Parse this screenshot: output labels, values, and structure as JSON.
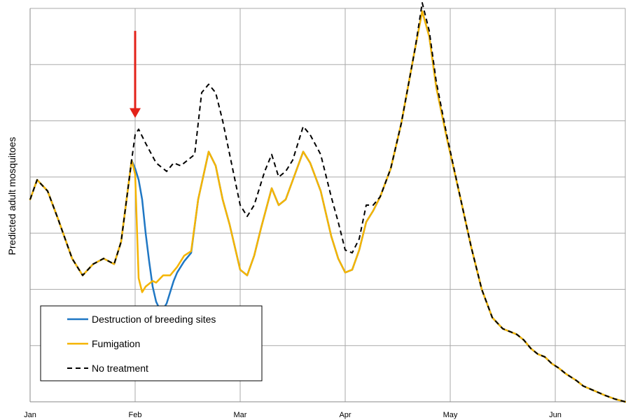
{
  "chart_data": {
    "type": "line",
    "title": "",
    "xlabel": "",
    "ylabel": "Predicted adult mosquitoes",
    "xlim": [
      0,
      170
    ],
    "ylim": [
      0,
      7
    ],
    "grid": true,
    "legend_position": "bottom-left",
    "x_ticks": [
      {
        "label": "Jan",
        "x": 0
      },
      {
        "label": "Feb",
        "x": 30
      },
      {
        "label": "Mar",
        "x": 60
      },
      {
        "label": "Apr",
        "x": 90
      },
      {
        "label": "May",
        "x": 120
      },
      {
        "label": "Jun",
        "x": 150
      }
    ],
    "y_ticks": [
      1,
      2,
      3,
      4,
      5,
      6,
      7
    ],
    "annotation": {
      "type": "arrow",
      "color": "#e32219",
      "x": 30,
      "y_from": 6.6,
      "y_to": 5.05
    },
    "series": [
      {
        "name": "Destruction of breeding sites",
        "color": "#1f77c4",
        "style": "solid",
        "points": [
          [
            0,
            3.6
          ],
          [
            2,
            3.95
          ],
          [
            5,
            3.75
          ],
          [
            8,
            3.25
          ],
          [
            12,
            2.55
          ],
          [
            15,
            2.25
          ],
          [
            18,
            2.45
          ],
          [
            21,
            2.55
          ],
          [
            24,
            2.45
          ],
          [
            26,
            2.85
          ],
          [
            29,
            4.3
          ],
          [
            30,
            4.15
          ],
          [
            31,
            3.95
          ],
          [
            32,
            3.6
          ],
          [
            33,
            3.0
          ],
          [
            34,
            2.5
          ],
          [
            35,
            2.05
          ],
          [
            36,
            1.78
          ],
          [
            37,
            1.65
          ],
          [
            38,
            1.65
          ],
          [
            39,
            1.75
          ],
          [
            40,
            1.95
          ],
          [
            41,
            2.15
          ],
          [
            42,
            2.3
          ],
          [
            44,
            2.5
          ],
          [
            46,
            2.65
          ],
          [
            48,
            3.6
          ],
          [
            51,
            4.45
          ],
          [
            53,
            4.2
          ],
          [
            55,
            3.6
          ],
          [
            57,
            3.15
          ],
          [
            60,
            2.35
          ],
          [
            62,
            2.25
          ],
          [
            64,
            2.6
          ],
          [
            66,
            3.1
          ],
          [
            69,
            3.8
          ],
          [
            71,
            3.5
          ],
          [
            73,
            3.6
          ],
          [
            78,
            4.45
          ],
          [
            80,
            4.25
          ],
          [
            83,
            3.75
          ],
          [
            86,
            2.95
          ],
          [
            88,
            2.55
          ],
          [
            90,
            2.3
          ],
          [
            92,
            2.35
          ],
          [
            94,
            2.7
          ],
          [
            96,
            3.2
          ],
          [
            98,
            3.4
          ],
          [
            100,
            3.65
          ],
          [
            103,
            4.15
          ],
          [
            106,
            4.95
          ],
          [
            110,
            6.3
          ],
          [
            112,
            6.95
          ],
          [
            114,
            6.5
          ],
          [
            116,
            5.6
          ],
          [
            119,
            4.7
          ],
          [
            123,
            3.6
          ],
          [
            126,
            2.75
          ],
          [
            129,
            2.0
          ],
          [
            132,
            1.5
          ],
          [
            135,
            1.3
          ],
          [
            137,
            1.25
          ],
          [
            139,
            1.2
          ],
          [
            141,
            1.1
          ],
          [
            143,
            0.95
          ],
          [
            145,
            0.85
          ],
          [
            147,
            0.8
          ],
          [
            149,
            0.68
          ],
          [
            151,
            0.6
          ],
          [
            153,
            0.5
          ],
          [
            156,
            0.38
          ],
          [
            158,
            0.28
          ],
          [
            161,
            0.2
          ],
          [
            164,
            0.12
          ],
          [
            167,
            0.05
          ],
          [
            170,
            0.0
          ]
        ]
      },
      {
        "name": "Fumigation",
        "color": "#f5b400",
        "style": "solid",
        "points": [
          [
            0,
            3.6
          ],
          [
            2,
            3.95
          ],
          [
            5,
            3.75
          ],
          [
            8,
            3.25
          ],
          [
            12,
            2.55
          ],
          [
            15,
            2.25
          ],
          [
            18,
            2.45
          ],
          [
            21,
            2.55
          ],
          [
            24,
            2.45
          ],
          [
            26,
            2.85
          ],
          [
            29,
            4.3
          ],
          [
            30,
            4.05
          ],
          [
            31,
            2.2
          ],
          [
            32,
            1.95
          ],
          [
            33,
            2.05
          ],
          [
            34,
            2.1
          ],
          [
            35,
            2.15
          ],
          [
            36,
            2.12
          ],
          [
            38,
            2.25
          ],
          [
            40,
            2.25
          ],
          [
            42,
            2.4
          ],
          [
            44,
            2.6
          ],
          [
            46,
            2.68
          ],
          [
            48,
            3.6
          ],
          [
            51,
            4.45
          ],
          [
            53,
            4.2
          ],
          [
            55,
            3.6
          ],
          [
            57,
            3.15
          ],
          [
            60,
            2.35
          ],
          [
            62,
            2.25
          ],
          [
            64,
            2.6
          ],
          [
            66,
            3.1
          ],
          [
            69,
            3.8
          ],
          [
            71,
            3.5
          ],
          [
            73,
            3.6
          ],
          [
            78,
            4.45
          ],
          [
            80,
            4.25
          ],
          [
            83,
            3.75
          ],
          [
            86,
            2.95
          ],
          [
            88,
            2.55
          ],
          [
            90,
            2.3
          ],
          [
            92,
            2.35
          ],
          [
            94,
            2.7
          ],
          [
            96,
            3.2
          ],
          [
            98,
            3.4
          ],
          [
            100,
            3.65
          ],
          [
            103,
            4.15
          ],
          [
            106,
            4.95
          ],
          [
            110,
            6.3
          ],
          [
            112,
            6.95
          ],
          [
            114,
            6.5
          ],
          [
            116,
            5.6
          ],
          [
            119,
            4.7
          ],
          [
            123,
            3.6
          ],
          [
            126,
            2.75
          ],
          [
            129,
            2.0
          ],
          [
            132,
            1.5
          ],
          [
            135,
            1.3
          ],
          [
            137,
            1.25
          ],
          [
            139,
            1.2
          ],
          [
            141,
            1.1
          ],
          [
            143,
            0.95
          ],
          [
            145,
            0.85
          ],
          [
            147,
            0.8
          ],
          [
            149,
            0.68
          ],
          [
            151,
            0.6
          ],
          [
            153,
            0.5
          ],
          [
            156,
            0.38
          ],
          [
            158,
            0.28
          ],
          [
            161,
            0.2
          ],
          [
            164,
            0.12
          ],
          [
            167,
            0.05
          ],
          [
            170,
            0.0
          ]
        ]
      },
      {
        "name": "No treatment",
        "color": "#000000",
        "style": "dashed",
        "points": [
          [
            0,
            3.6
          ],
          [
            2,
            3.95
          ],
          [
            5,
            3.75
          ],
          [
            8,
            3.25
          ],
          [
            12,
            2.55
          ],
          [
            15,
            2.25
          ],
          [
            18,
            2.45
          ],
          [
            21,
            2.55
          ],
          [
            24,
            2.45
          ],
          [
            26,
            2.85
          ],
          [
            29,
            4.3
          ],
          [
            30,
            4.75
          ],
          [
            31,
            4.85
          ],
          [
            33,
            4.6
          ],
          [
            36,
            4.25
          ],
          [
            39,
            4.1
          ],
          [
            41,
            4.25
          ],
          [
            43,
            4.2
          ],
          [
            45,
            4.3
          ],
          [
            47,
            4.4
          ],
          [
            49,
            5.5
          ],
          [
            51,
            5.65
          ],
          [
            53,
            5.5
          ],
          [
            55,
            5.0
          ],
          [
            57,
            4.4
          ],
          [
            60,
            3.5
          ],
          [
            62,
            3.3
          ],
          [
            64,
            3.5
          ],
          [
            67,
            4.1
          ],
          [
            69,
            4.4
          ],
          [
            71,
            4.0
          ],
          [
            73,
            4.1
          ],
          [
            75,
            4.3
          ],
          [
            78,
            4.9
          ],
          [
            80,
            4.75
          ],
          [
            83,
            4.4
          ],
          [
            86,
            3.65
          ],
          [
            88,
            3.2
          ],
          [
            90,
            2.7
          ],
          [
            92,
            2.65
          ],
          [
            94,
            2.9
          ],
          [
            96,
            3.5
          ],
          [
            98,
            3.5
          ],
          [
            100,
            3.65
          ],
          [
            103,
            4.15
          ],
          [
            106,
            4.95
          ],
          [
            110,
            6.3
          ],
          [
            112,
            7.1
          ],
          [
            114,
            6.6
          ],
          [
            116,
            5.7
          ],
          [
            119,
            4.75
          ],
          [
            123,
            3.6
          ],
          [
            126,
            2.75
          ],
          [
            129,
            2.0
          ],
          [
            132,
            1.5
          ],
          [
            135,
            1.3
          ],
          [
            137,
            1.25
          ],
          [
            139,
            1.2
          ],
          [
            141,
            1.1
          ],
          [
            143,
            0.95
          ],
          [
            145,
            0.85
          ],
          [
            147,
            0.8
          ],
          [
            149,
            0.68
          ],
          [
            151,
            0.6
          ],
          [
            153,
            0.5
          ],
          [
            156,
            0.38
          ],
          [
            158,
            0.28
          ],
          [
            161,
            0.2
          ],
          [
            164,
            0.12
          ],
          [
            167,
            0.05
          ],
          [
            170,
            0.0
          ]
        ]
      }
    ]
  }
}
